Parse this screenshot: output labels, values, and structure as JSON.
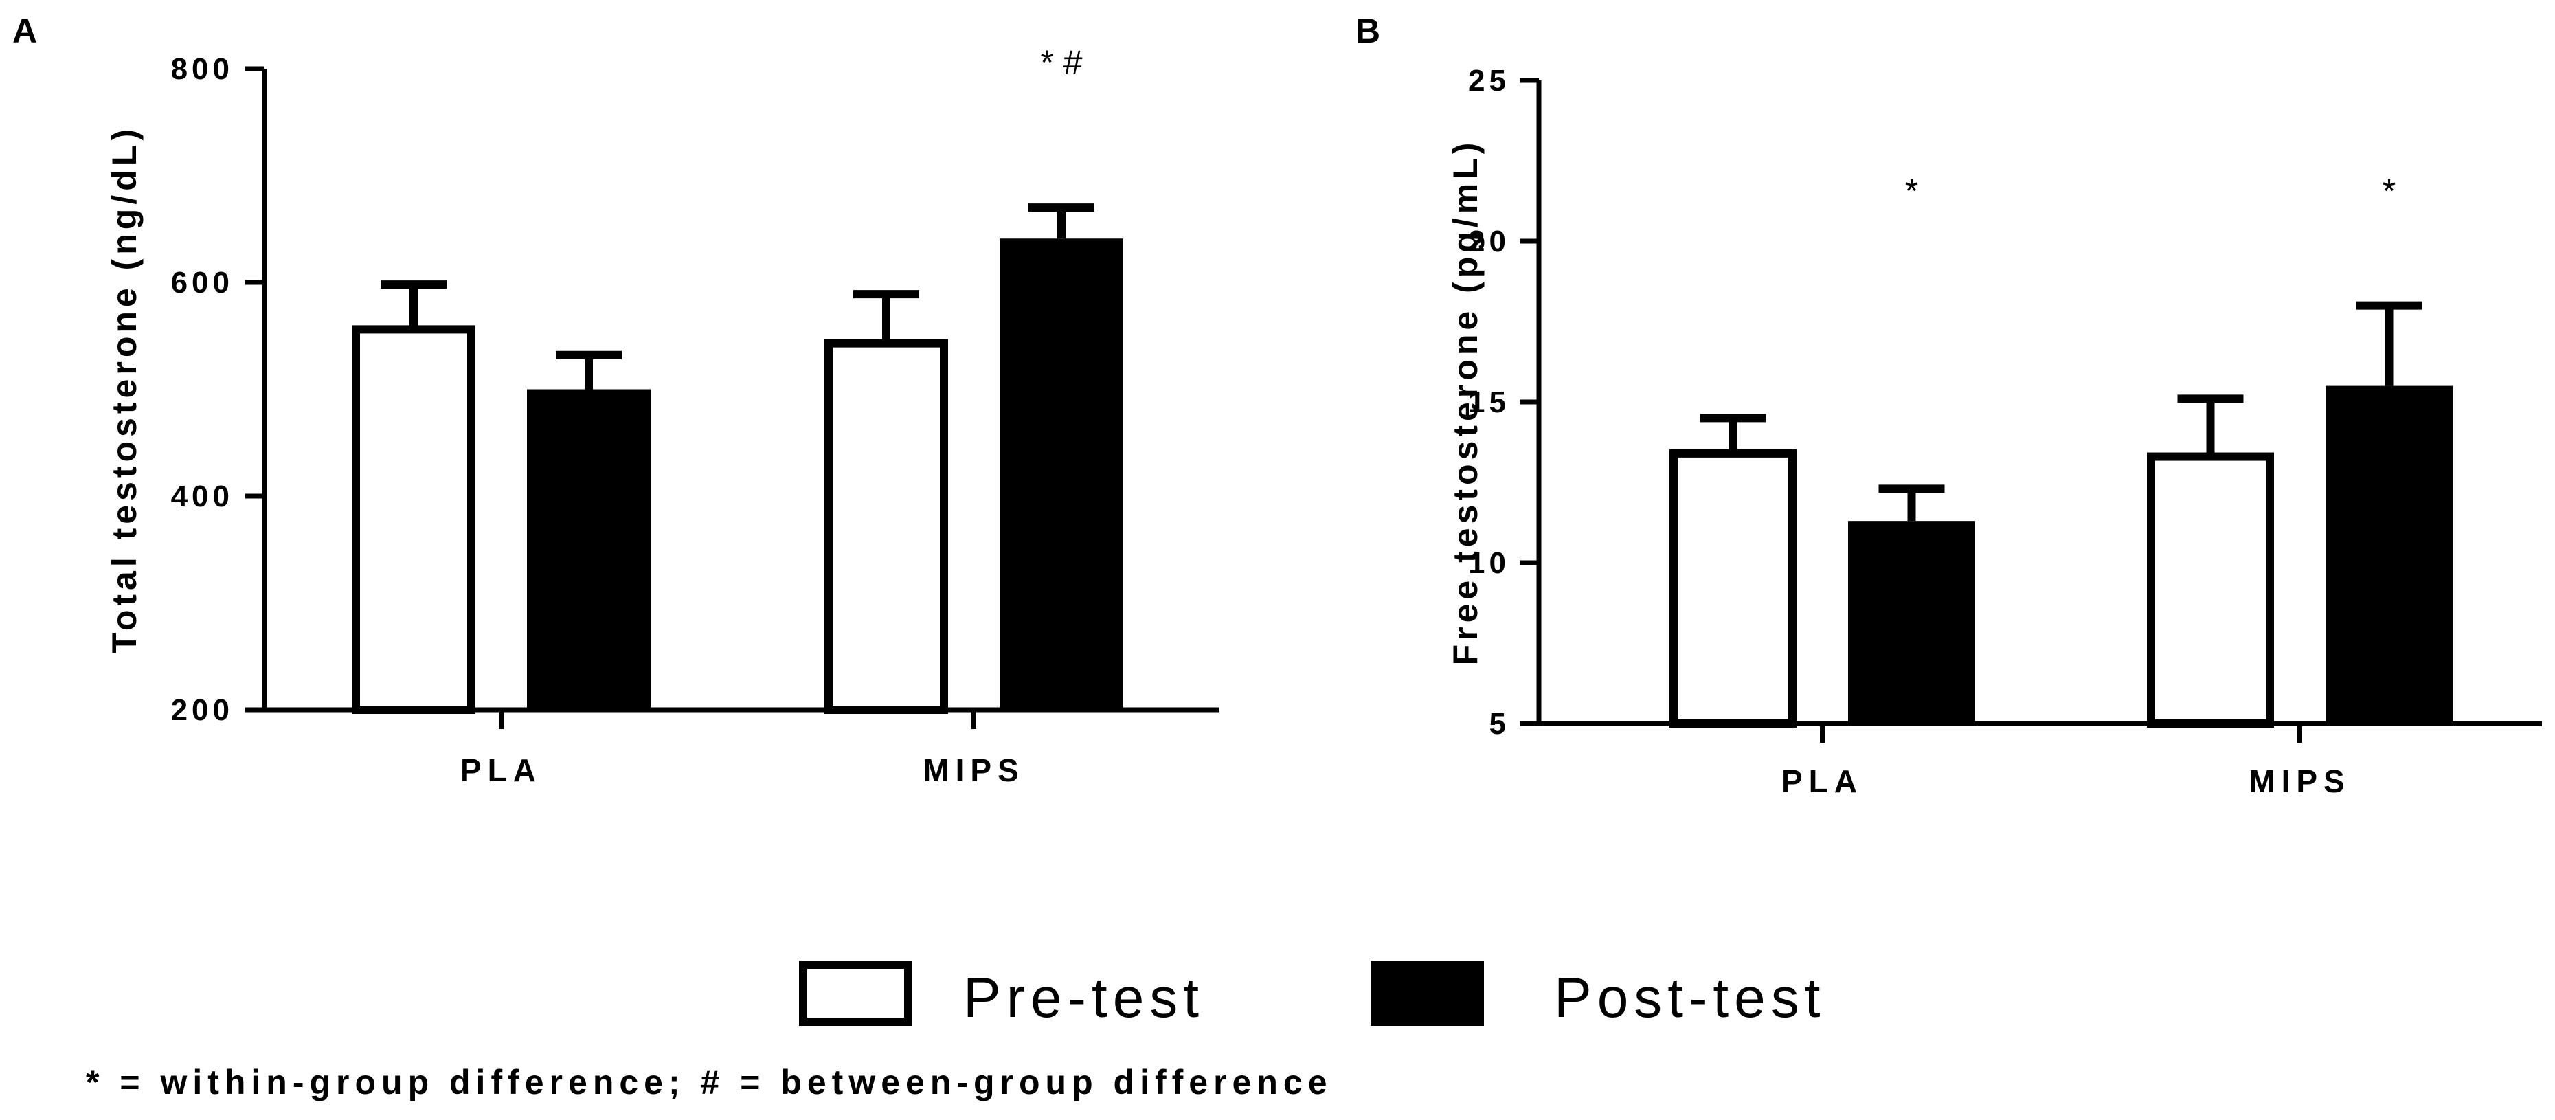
{
  "chart_data": [
    {
      "panel": "A",
      "type": "bar",
      "categories": [
        "PLA",
        "MIPS"
      ],
      "ylabel": "Total testosterone (ng/dL)",
      "ylim": [
        200,
        800
      ],
      "yticks": [
        "200",
        "400",
        "600",
        "800"
      ],
      "series": [
        {
          "name": "Pre-test",
          "values": [
            556,
            543
          ],
          "errors": [
            42,
            46
          ],
          "fill": "#ffffff"
        },
        {
          "name": "Post-test",
          "values": [
            500,
            641
          ],
          "errors": [
            32,
            29
          ],
          "fill": "#000000"
        }
      ],
      "annotations": [
        {
          "category": "MIPS",
          "series": "Post-test",
          "text": "* #"
        }
      ]
    },
    {
      "panel": "B",
      "type": "bar",
      "categories": [
        "PLA",
        "MIPS"
      ],
      "ylabel": "Free testosterone (pg/mL)",
      "ylim": [
        5,
        25
      ],
      "yticks": [
        "5",
        "10",
        "15",
        "20",
        "25"
      ],
      "series": [
        {
          "name": "Pre-test",
          "values": [
            13.4,
            13.3
          ],
          "errors": [
            1.1,
            1.8
          ],
          "fill": "#ffffff"
        },
        {
          "name": "Post-test",
          "values": [
            11.3,
            15.5
          ],
          "errors": [
            1.0,
            2.5
          ],
          "fill": "#000000"
        }
      ],
      "annotations": [
        {
          "category": "PLA",
          "series": "Post-test",
          "text": "*"
        },
        {
          "category": "MIPS",
          "series": "Post-test",
          "text": "*"
        }
      ]
    }
  ],
  "legend": {
    "items": [
      {
        "label": "Pre-test",
        "fill": "#ffffff"
      },
      {
        "label": "Post-test",
        "fill": "#000000"
      }
    ]
  },
  "footnote": "* = within-group difference; # = between-group difference"
}
